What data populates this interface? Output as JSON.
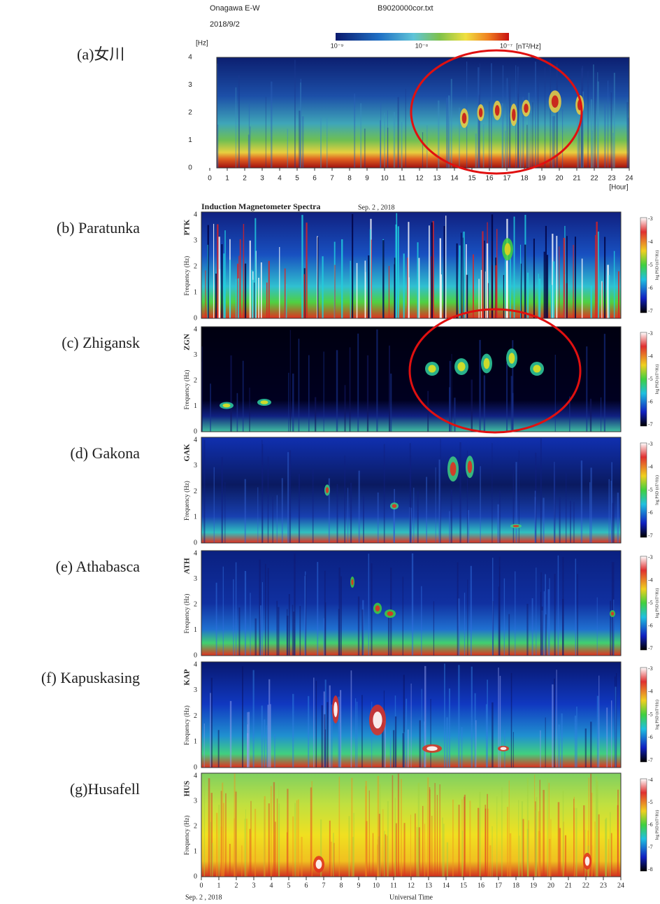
{
  "panel_a": {
    "title": "Onagawa E-W",
    "file": "B9020000cor.txt",
    "date": "2018/9/2",
    "label": "(a)女川",
    "y_unit": "[Hz]",
    "colorbar_unit": "[nT²/Hz]",
    "colorbar_ticks": [
      "10⁻⁹",
      "10⁻⁸",
      "10⁻⁷"
    ],
    "y_ticks": [
      "0",
      "1",
      "2",
      "3",
      "4"
    ],
    "x_ticks": [
      "0",
      "1",
      "2",
      "3",
      "4",
      "5",
      "6",
      "7",
      "8",
      "9",
      "10",
      "11",
      "12",
      "13",
      "14",
      "15",
      "16",
      "17",
      "18",
      "19",
      "20",
      "21",
      "22",
      "23",
      "24"
    ],
    "x_unit": "[Hour]"
  },
  "panels_bg": {
    "header": "Induction Magnetometer Spectra",
    "date": "Sep. 2 , 2018",
    "y_axis_title": "Frequency (Hz)",
    "colorbar_title": "log PSD (nT²/Hz)",
    "y_ticks": [
      "0",
      "1",
      "2",
      "3",
      "4"
    ],
    "stations": [
      {
        "label": "(b) Paratunka",
        "code": "PTK",
        "colorbar_ticks": [
          "-3",
          "-4",
          "-5",
          "-6",
          "-7"
        ]
      },
      {
        "label": "(c) Zhigansk",
        "code": "ZGN",
        "colorbar_ticks": [
          "-3",
          "-4",
          "-5",
          "-6",
          "-7"
        ]
      },
      {
        "label": "(d) Gakona",
        "code": "GAK",
        "colorbar_ticks": [
          "-3",
          "-4",
          "-5",
          "-6",
          "-7"
        ]
      },
      {
        "label": "(e) Athabasca",
        "code": "ATH",
        "colorbar_ticks": [
          "-3",
          "-4",
          "-5",
          "-6",
          "-7"
        ]
      },
      {
        "label": "(f) Kapuskasing",
        "code": "KAP",
        "colorbar_ticks": [
          "-3",
          "-4",
          "-5",
          "-6",
          "-7"
        ]
      },
      {
        "label": "(g)Husafell",
        "code": "HUS",
        "colorbar_ticks": [
          "-4",
          "-5",
          "-6",
          "-7",
          "-8"
        ]
      }
    ],
    "x_ticks": [
      "0",
      "1",
      "2",
      "3",
      "4",
      "5",
      "6",
      "7",
      "8",
      "9",
      "10",
      "11",
      "12",
      "13",
      "14",
      "15",
      "16",
      "17",
      "18",
      "19",
      "20",
      "21",
      "22",
      "23",
      "24"
    ],
    "footer_date": "Sep. 2 , 2018",
    "x_axis_title": "Universal Time"
  }
}
